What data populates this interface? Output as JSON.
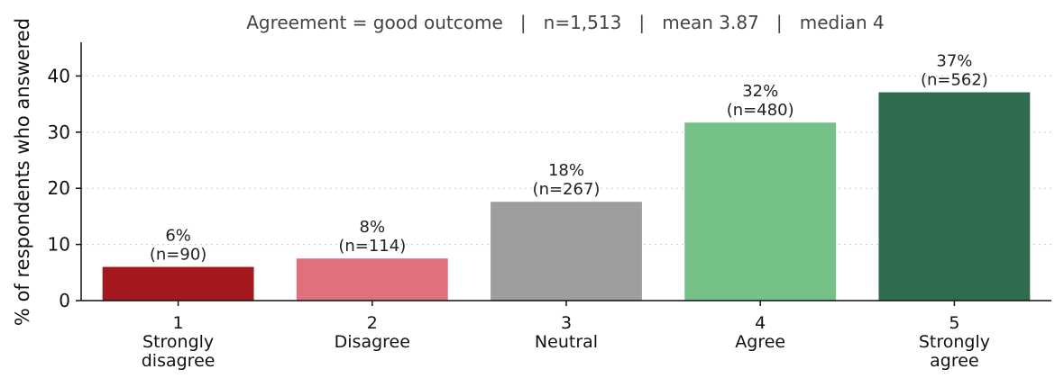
{
  "chart_data": {
    "type": "bar",
    "title": "Agreement = good outcome   |   n=1,513   |   mean 3.87   |   median 4",
    "ylabel": "% of respondents who answered",
    "xlabel": "",
    "ylim": [
      0,
      46
    ],
    "yticks": [
      0,
      10,
      20,
      30,
      40
    ],
    "grid": true,
    "categories": [
      {
        "code": "1",
        "label": [
          "Strongly",
          "disagree"
        ]
      },
      {
        "code": "2",
        "label": [
          "Disagree"
        ]
      },
      {
        "code": "3",
        "label": [
          "Neutral"
        ]
      },
      {
        "code": "4",
        "label": [
          "Agree"
        ]
      },
      {
        "code": "5",
        "label": [
          "Strongly",
          "agree"
        ]
      }
    ],
    "values": [
      6.0,
      7.5,
      17.6,
      31.7,
      37.1
    ],
    "counts": [
      90,
      114,
      267,
      480,
      562
    ],
    "data_labels": [
      [
        "6%",
        "(n=90)"
      ],
      [
        "8%",
        "(n=114)"
      ],
      [
        "18%",
        "(n=267)"
      ],
      [
        "32%",
        "(n=480)"
      ],
      [
        "37%",
        "(n=562)"
      ]
    ],
    "colors": [
      "#a5191e",
      "#e0707b",
      "#9e9e9e",
      "#76c188",
      "#2e6b4f"
    ]
  }
}
